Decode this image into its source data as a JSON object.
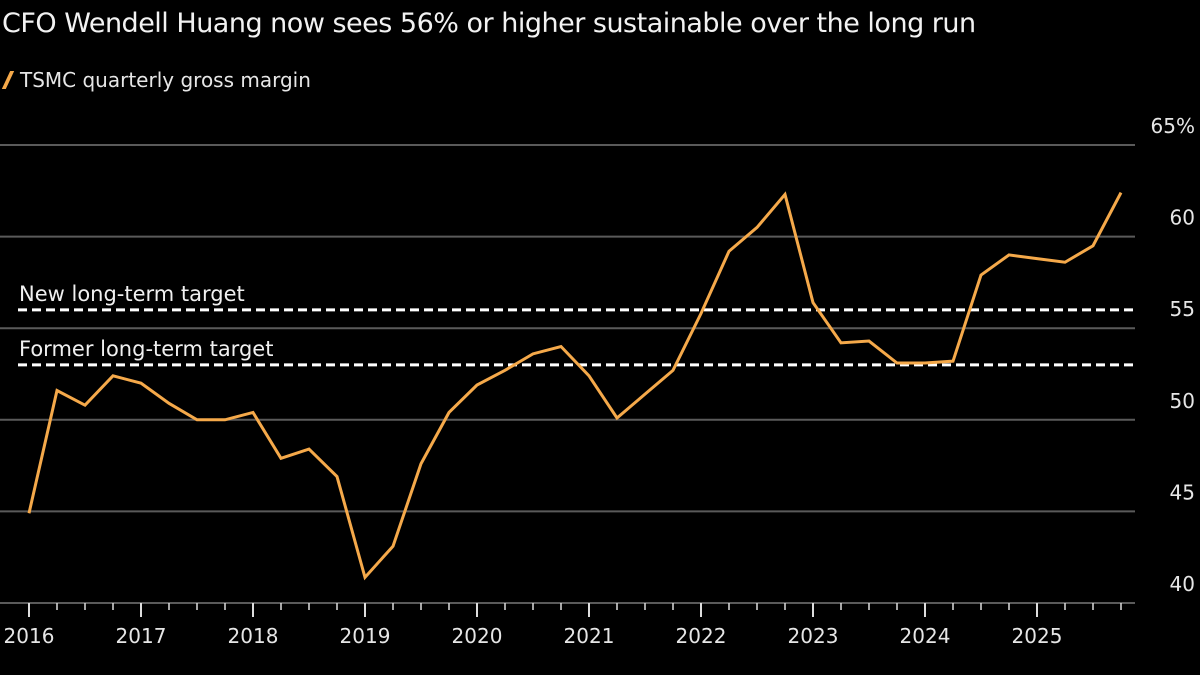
{
  "chart_data": {
    "type": "line",
    "subtitle": "CFO Wendell Huang now sees 56% or higher sustainable over the long run",
    "legend": [
      "TSMC quarterly gross margin"
    ],
    "series": [
      {
        "name": "TSMC quarterly gross margin",
        "color": "#f5a94a",
        "x": [
          "2016Q1",
          "2016Q2",
          "2016Q3",
          "2016Q4",
          "2017Q1",
          "2017Q2",
          "2017Q3",
          "2017Q4",
          "2018Q1",
          "2018Q2",
          "2018Q3",
          "2018Q4",
          "2019Q1",
          "2019Q2",
          "2019Q3",
          "2019Q4",
          "2020Q1",
          "2020Q2",
          "2020Q3",
          "2020Q4",
          "2021Q1",
          "2021Q2",
          "2021Q3",
          "2021Q4",
          "2022Q1",
          "2022Q2",
          "2022Q3",
          "2022Q4",
          "2023Q1",
          "2023Q2",
          "2023Q3",
          "2023Q4",
          "2024Q1",
          "2024Q2",
          "2024Q3",
          "2024Q4",
          "2025Q1",
          "2025Q2",
          "2025Q3",
          "2025Q4"
        ],
        "values": [
          44.9,
          51.6,
          50.8,
          52.4,
          52.0,
          50.9,
          50.0,
          50.0,
          50.4,
          47.9,
          48.4,
          46.9,
          41.4,
          43.1,
          47.6,
          50.4,
          51.9,
          52.7,
          53.6,
          54.0,
          52.4,
          50.1,
          51.4,
          52.7,
          55.8,
          59.2,
          60.5,
          62.3,
          56.4,
          54.2,
          54.3,
          53.1,
          53.1,
          53.2,
          57.9,
          59.0,
          58.8,
          58.6,
          59.5,
          62.4
        ]
      }
    ],
    "reference_lines": [
      {
        "label": "New long-term target",
        "value": 56
      },
      {
        "label": "Former long-term target",
        "value": 53
      }
    ],
    "yticks": [
      40,
      45,
      50,
      55,
      60,
      65
    ],
    "ytick_labels": [
      "40",
      "45",
      "50",
      "55",
      "60",
      "65%"
    ],
    "ylim": [
      40,
      65
    ],
    "xtick_labels": [
      "2016",
      "2017",
      "2018",
      "2019",
      "2020",
      "2021",
      "2022",
      "2023",
      "2024",
      "2025"
    ],
    "grid": true,
    "legend_position": "top-left"
  }
}
